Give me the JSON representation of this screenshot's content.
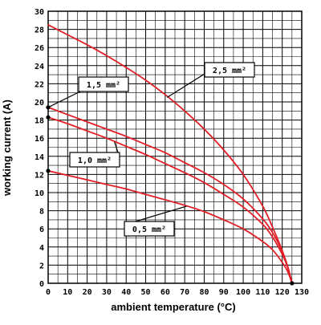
{
  "chart_data": {
    "type": "line",
    "xlabel": "ambient temperature (°C)",
    "ylabel": "working current (A)",
    "xlim": [
      0,
      130
    ],
    "ylim": [
      0,
      30
    ],
    "x_ticks": [
      "0",
      "10",
      "20",
      "30",
      "40",
      "50",
      "60",
      "70",
      "80",
      "90",
      "100",
      "110",
      "120",
      "130"
    ],
    "y_ticks": [
      "0",
      "2",
      "4",
      "6",
      "8",
      "10",
      "12",
      "14",
      "16",
      "18",
      "20",
      "22",
      "24",
      "26",
      "28",
      "30"
    ],
    "grid": true,
    "colors": {
      "series": "#e21f26",
      "grid": "#000000",
      "dot": "#000000"
    },
    "series": [
      {
        "name": "2,5 mm²",
        "x": [
          0,
          10,
          20,
          30,
          40,
          50,
          60,
          70,
          80,
          90,
          100,
          110,
          115,
          120,
          123,
          125
        ],
        "y": [
          28.5,
          27.4,
          26.3,
          25.1,
          23.8,
          22.4,
          20.8,
          19.0,
          17.0,
          14.7,
          12.0,
          8.5,
          6.2,
          3.6,
          1.7,
          0.0
        ]
      },
      {
        "name": "1,5 mm²",
        "x": [
          0,
          10,
          20,
          30,
          40,
          50,
          60,
          70,
          80,
          90,
          100,
          110,
          115,
          120,
          123,
          125
        ],
        "y": [
          19.4,
          18.6,
          17.8,
          17.0,
          16.2,
          15.3,
          14.4,
          13.3,
          12.2,
          10.9,
          9.3,
          7.1,
          5.6,
          3.5,
          1.7,
          0.0
        ]
      },
      {
        "name": "1,0 mm²",
        "x": [
          0,
          10,
          20,
          30,
          40,
          50,
          60,
          70,
          80,
          90,
          100,
          110,
          115,
          120,
          123,
          125
        ],
        "y": [
          18.3,
          17.6,
          16.8,
          16.0,
          15.1,
          14.2,
          13.2,
          12.2,
          11.1,
          9.8,
          8.4,
          6.5,
          5.1,
          3.2,
          1.6,
          0.0
        ]
      },
      {
        "name": "0,5 mm²",
        "x": [
          0,
          10,
          20,
          30,
          40,
          50,
          60,
          70,
          80,
          90,
          100,
          110,
          115,
          120,
          123,
          125
        ],
        "y": [
          12.4,
          11.9,
          11.4,
          10.9,
          10.4,
          9.8,
          9.2,
          8.6,
          7.9,
          7.0,
          6.0,
          4.6,
          3.7,
          2.3,
          1.2,
          0.0
        ]
      }
    ],
    "start_dots": [
      {
        "x": 0,
        "y": 19.4
      },
      {
        "x": 0,
        "y": 18.3
      },
      {
        "x": 0,
        "y": 12.4
      }
    ],
    "end_dot": {
      "x": 125,
      "y": 0
    },
    "callouts": [
      {
        "label": "2,5 mm²",
        "series": "2,5 mm²",
        "anchor_x": 61,
        "anchor_y": 20.5
      },
      {
        "label": "1,5 mm²",
        "series": "1,5 mm²",
        "anchor_x": 0,
        "anchor_y": 19.4
      },
      {
        "label": "1,0 mm²",
        "series": "1,0 mm²",
        "anchor_x": 34,
        "anchor_y": 15.6
      },
      {
        "label": "0,5 mm²",
        "series": "0,5 mm²",
        "anchor_x": 71,
        "anchor_y": 8.5
      }
    ]
  }
}
